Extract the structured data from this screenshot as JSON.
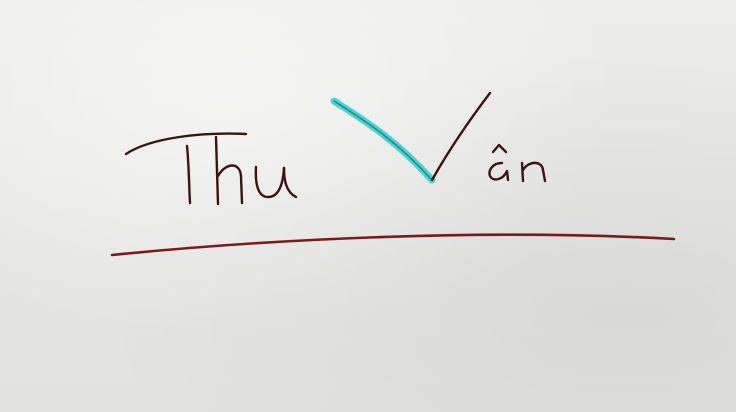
{
  "handwritten_text": "Thu Vân",
  "colors": {
    "paper": "#e9e9e7",
    "ink": "#3a1414",
    "underline": "#7a1a1a",
    "highlight": "#3fd1cf"
  }
}
